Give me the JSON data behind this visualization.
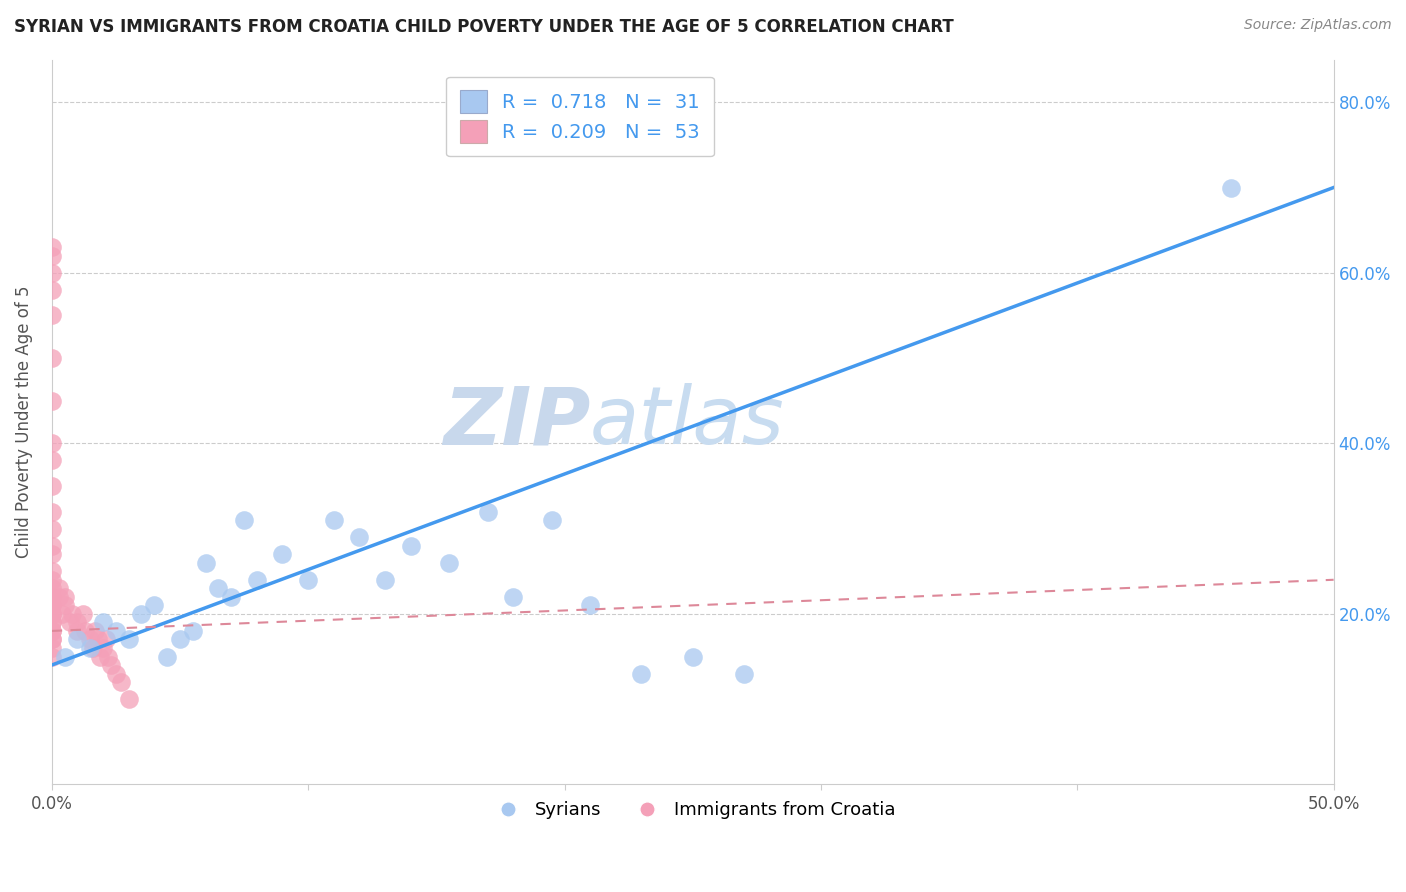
{
  "title": "SYRIAN VS IMMIGRANTS FROM CROATIA CHILD POVERTY UNDER THE AGE OF 5 CORRELATION CHART",
  "source": "Source: ZipAtlas.com",
  "ylabel": "Child Poverty Under the Age of 5",
  "xlim": [
    0.0,
    0.5
  ],
  "ylim": [
    0.0,
    0.85
  ],
  "xticks": [
    0.0,
    0.1,
    0.2,
    0.3,
    0.4,
    0.5
  ],
  "xticklabels": [
    "0.0%",
    "",
    "",
    "",
    "",
    "50.0%"
  ],
  "yticks": [
    0.2,
    0.4,
    0.6,
    0.8
  ],
  "yticklabels": [
    "20.0%",
    "40.0%",
    "60.0%",
    "80.0%"
  ],
  "legend_r_blue": "0.718",
  "legend_n_blue": "31",
  "legend_r_pink": "0.209",
  "legend_n_pink": "53",
  "color_blue": "#A8C8F0",
  "color_pink": "#F4A0B8",
  "trendline_blue": "#4499EE",
  "trendline_pink": "#DD8899",
  "watermark": "ZIPatlas",
  "watermark_color": "#D8E8F8",
  "syrians_x": [
    0.005,
    0.01,
    0.015,
    0.02,
    0.025,
    0.03,
    0.035,
    0.04,
    0.045,
    0.05,
    0.055,
    0.06,
    0.065,
    0.07,
    0.075,
    0.08,
    0.09,
    0.1,
    0.11,
    0.12,
    0.13,
    0.14,
    0.155,
    0.17,
    0.18,
    0.195,
    0.21,
    0.23,
    0.25,
    0.27,
    0.46
  ],
  "syrians_y": [
    0.15,
    0.17,
    0.16,
    0.19,
    0.18,
    0.17,
    0.2,
    0.21,
    0.15,
    0.17,
    0.18,
    0.26,
    0.23,
    0.22,
    0.31,
    0.24,
    0.27,
    0.24,
    0.31,
    0.29,
    0.24,
    0.28,
    0.26,
    0.32,
    0.22,
    0.31,
    0.21,
    0.13,
    0.15,
    0.13,
    0.7
  ],
  "croatia_x": [
    0.0,
    0.0,
    0.0,
    0.0,
    0.0,
    0.0,
    0.0,
    0.0,
    0.0,
    0.0,
    0.0,
    0.0,
    0.0,
    0.0,
    0.0,
    0.0,
    0.0,
    0.0,
    0.0,
    0.0,
    0.0,
    0.0,
    0.0,
    0.0,
    0.0,
    0.0,
    0.0,
    0.0,
    0.0,
    0.0,
    0.003,
    0.003,
    0.004,
    0.005,
    0.005,
    0.007,
    0.008,
    0.01,
    0.01,
    0.012,
    0.013,
    0.015,
    0.016,
    0.017,
    0.018,
    0.019,
    0.02,
    0.021,
    0.022,
    0.023,
    0.025,
    0.027,
    0.03
  ],
  "croatia_y": [
    0.15,
    0.17,
    0.18,
    0.19,
    0.2,
    0.21,
    0.22,
    0.23,
    0.24,
    0.25,
    0.27,
    0.28,
    0.3,
    0.32,
    0.35,
    0.38,
    0.4,
    0.45,
    0.5,
    0.55,
    0.58,
    0.6,
    0.62,
    0.63,
    0.16,
    0.17,
    0.18,
    0.19,
    0.2,
    0.21,
    0.22,
    0.23,
    0.2,
    0.21,
    0.22,
    0.19,
    0.2,
    0.18,
    0.19,
    0.2,
    0.18,
    0.17,
    0.16,
    0.18,
    0.17,
    0.15,
    0.16,
    0.17,
    0.15,
    0.14,
    0.13,
    0.12,
    0.1
  ],
  "trendline_blue_x0": 0.0,
  "trendline_blue_y0": 0.14,
  "trendline_blue_x1": 0.5,
  "trendline_blue_y1": 0.7,
  "trendline_pink_x0": 0.0,
  "trendline_pink_y0": 0.18,
  "trendline_pink_x1": 0.5,
  "trendline_pink_y1": 0.24
}
